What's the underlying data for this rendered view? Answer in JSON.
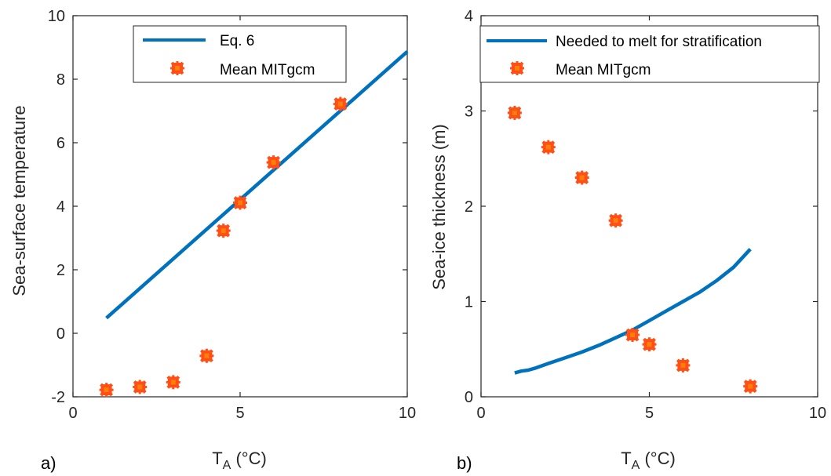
{
  "colors": {
    "line": "#0072BD",
    "marker": "#FF4F16",
    "marker_dots": "#F8A000",
    "axis": "#262626"
  },
  "chart_data": [
    {
      "type": "scatter",
      "panel_label": "a)",
      "xlabel": "T",
      "xlabel_sub": "A",
      "xlabel_unit": " (°C)",
      "ylabel": "Sea-surface temperature",
      "xlim": [
        0,
        10
      ],
      "ylim": [
        -2,
        10
      ],
      "xticks": [
        0,
        5,
        10
      ],
      "yticks": [
        -2,
        0,
        2,
        4,
        6,
        8,
        10
      ],
      "legend_position": "top",
      "series": [
        {
          "name": "Eq. 6",
          "kind": "line",
          "x": [
            1,
            10
          ],
          "y": [
            0.48,
            8.87
          ]
        },
        {
          "name": "Mean MITgcm",
          "kind": "markers",
          "x": [
            1,
            2,
            3,
            4,
            4.5,
            5,
            6,
            8
          ],
          "y": [
            -1.78,
            -1.69,
            -1.54,
            -0.71,
            3.23,
            4.11,
            5.38,
            7.22
          ]
        }
      ]
    },
    {
      "type": "scatter",
      "panel_label": "b)",
      "xlabel": "T",
      "xlabel_sub": "A",
      "xlabel_unit": " (°C)",
      "ylabel": "Sea-ice thickness (m)",
      "xlim": [
        0,
        10
      ],
      "ylim": [
        0,
        4
      ],
      "xticks": [
        0,
        5,
        10
      ],
      "yticks": [
        0,
        1,
        2,
        3,
        4
      ],
      "legend_position": "top",
      "series": [
        {
          "name": "Needed to melt for stratification",
          "kind": "line",
          "x": [
            1,
            1.2,
            1.4,
            1.6,
            2,
            2.5,
            3,
            3.5,
            4,
            4.5,
            5,
            5.5,
            6,
            6.5,
            7,
            7.5,
            8
          ],
          "y": [
            0.25,
            0.27,
            0.28,
            0.3,
            0.35,
            0.41,
            0.47,
            0.54,
            0.62,
            0.7,
            0.8,
            0.9,
            1.0,
            1.1,
            1.22,
            1.36,
            1.55
          ]
        },
        {
          "name": "Mean MITgcm",
          "kind": "markers",
          "x": [
            1,
            2,
            3,
            4,
            4.5,
            5,
            6,
            8
          ],
          "y": [
            2.98,
            2.62,
            2.3,
            1.85,
            0.65,
            0.55,
            0.33,
            0.11
          ]
        }
      ]
    }
  ]
}
